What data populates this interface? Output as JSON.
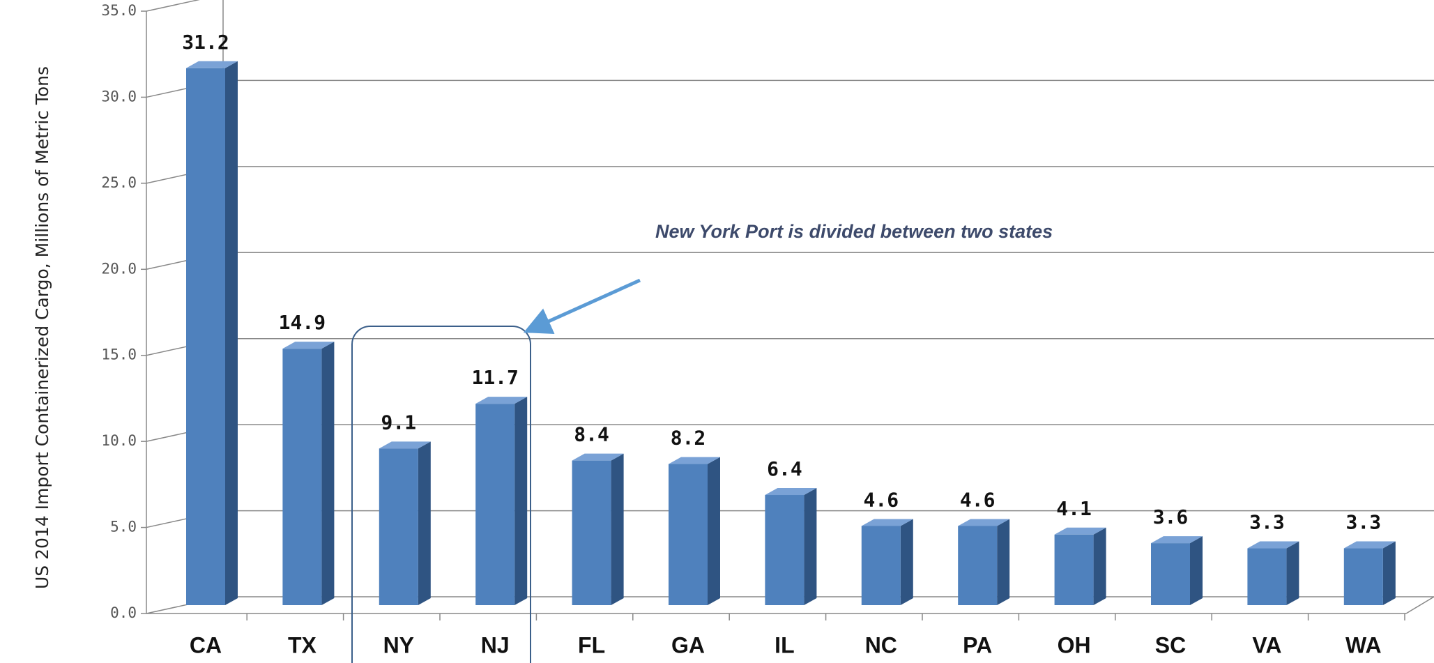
{
  "chart_data": {
    "type": "bar",
    "ylabel": "US 2014 Import Containerized Cargo, Millions of Metric Tons",
    "annotation": "New York Port is divided between two states",
    "categories": [
      "CA",
      "TX",
      "NY",
      "NJ",
      "FL",
      "GA",
      "IL",
      "NC",
      "PA",
      "OH",
      "SC",
      "VA",
      "WA"
    ],
    "values": [
      31.2,
      14.9,
      9.1,
      11.7,
      8.4,
      8.2,
      6.4,
      4.6,
      4.6,
      4.1,
      3.6,
      3.3,
      3.3
    ],
    "color": "#4f81bd",
    "ylim": [
      0,
      35
    ],
    "yticks": [
      {
        "value": 0,
        "label": "0.0"
      },
      {
        "value": 5,
        "label": "5.0"
      },
      {
        "value": 10,
        "label": "10.0"
      },
      {
        "value": 15,
        "label": "15.0"
      },
      {
        "value": 20,
        "label": "20.0"
      },
      {
        "value": 25,
        "label": "25.0"
      },
      {
        "value": 30,
        "label": "30.0"
      },
      {
        "value": 35,
        "label": "35.0"
      }
    ],
    "grid": true
  }
}
